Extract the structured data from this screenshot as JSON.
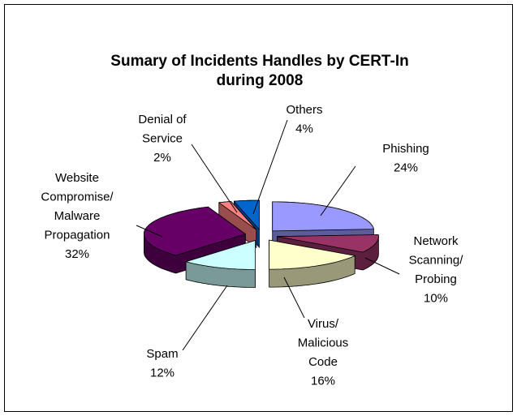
{
  "chart_data": {
    "type": "pie",
    "title": "Sumary of Incidents Handles by CERT-In\nduring 2008",
    "categories": [
      "Phishing",
      "Network\nScanning/\nProbing",
      "Virus/\nMalicious\nCode",
      "Spam",
      "Website\nCompromise/\nMalware\nPropagation",
      "Denial of\nService",
      "Others"
    ],
    "values": [
      24,
      10,
      16,
      12,
      32,
      2,
      4
    ],
    "value_labels": [
      "24%",
      "10%",
      "16%",
      "12%",
      "32%",
      "2%",
      "4%"
    ],
    "colors": [
      "#9999ff",
      "#993366",
      "#ffffcc",
      "#ccffff",
      "#660066",
      "#ff8080",
      "#0066cc"
    ]
  }
}
